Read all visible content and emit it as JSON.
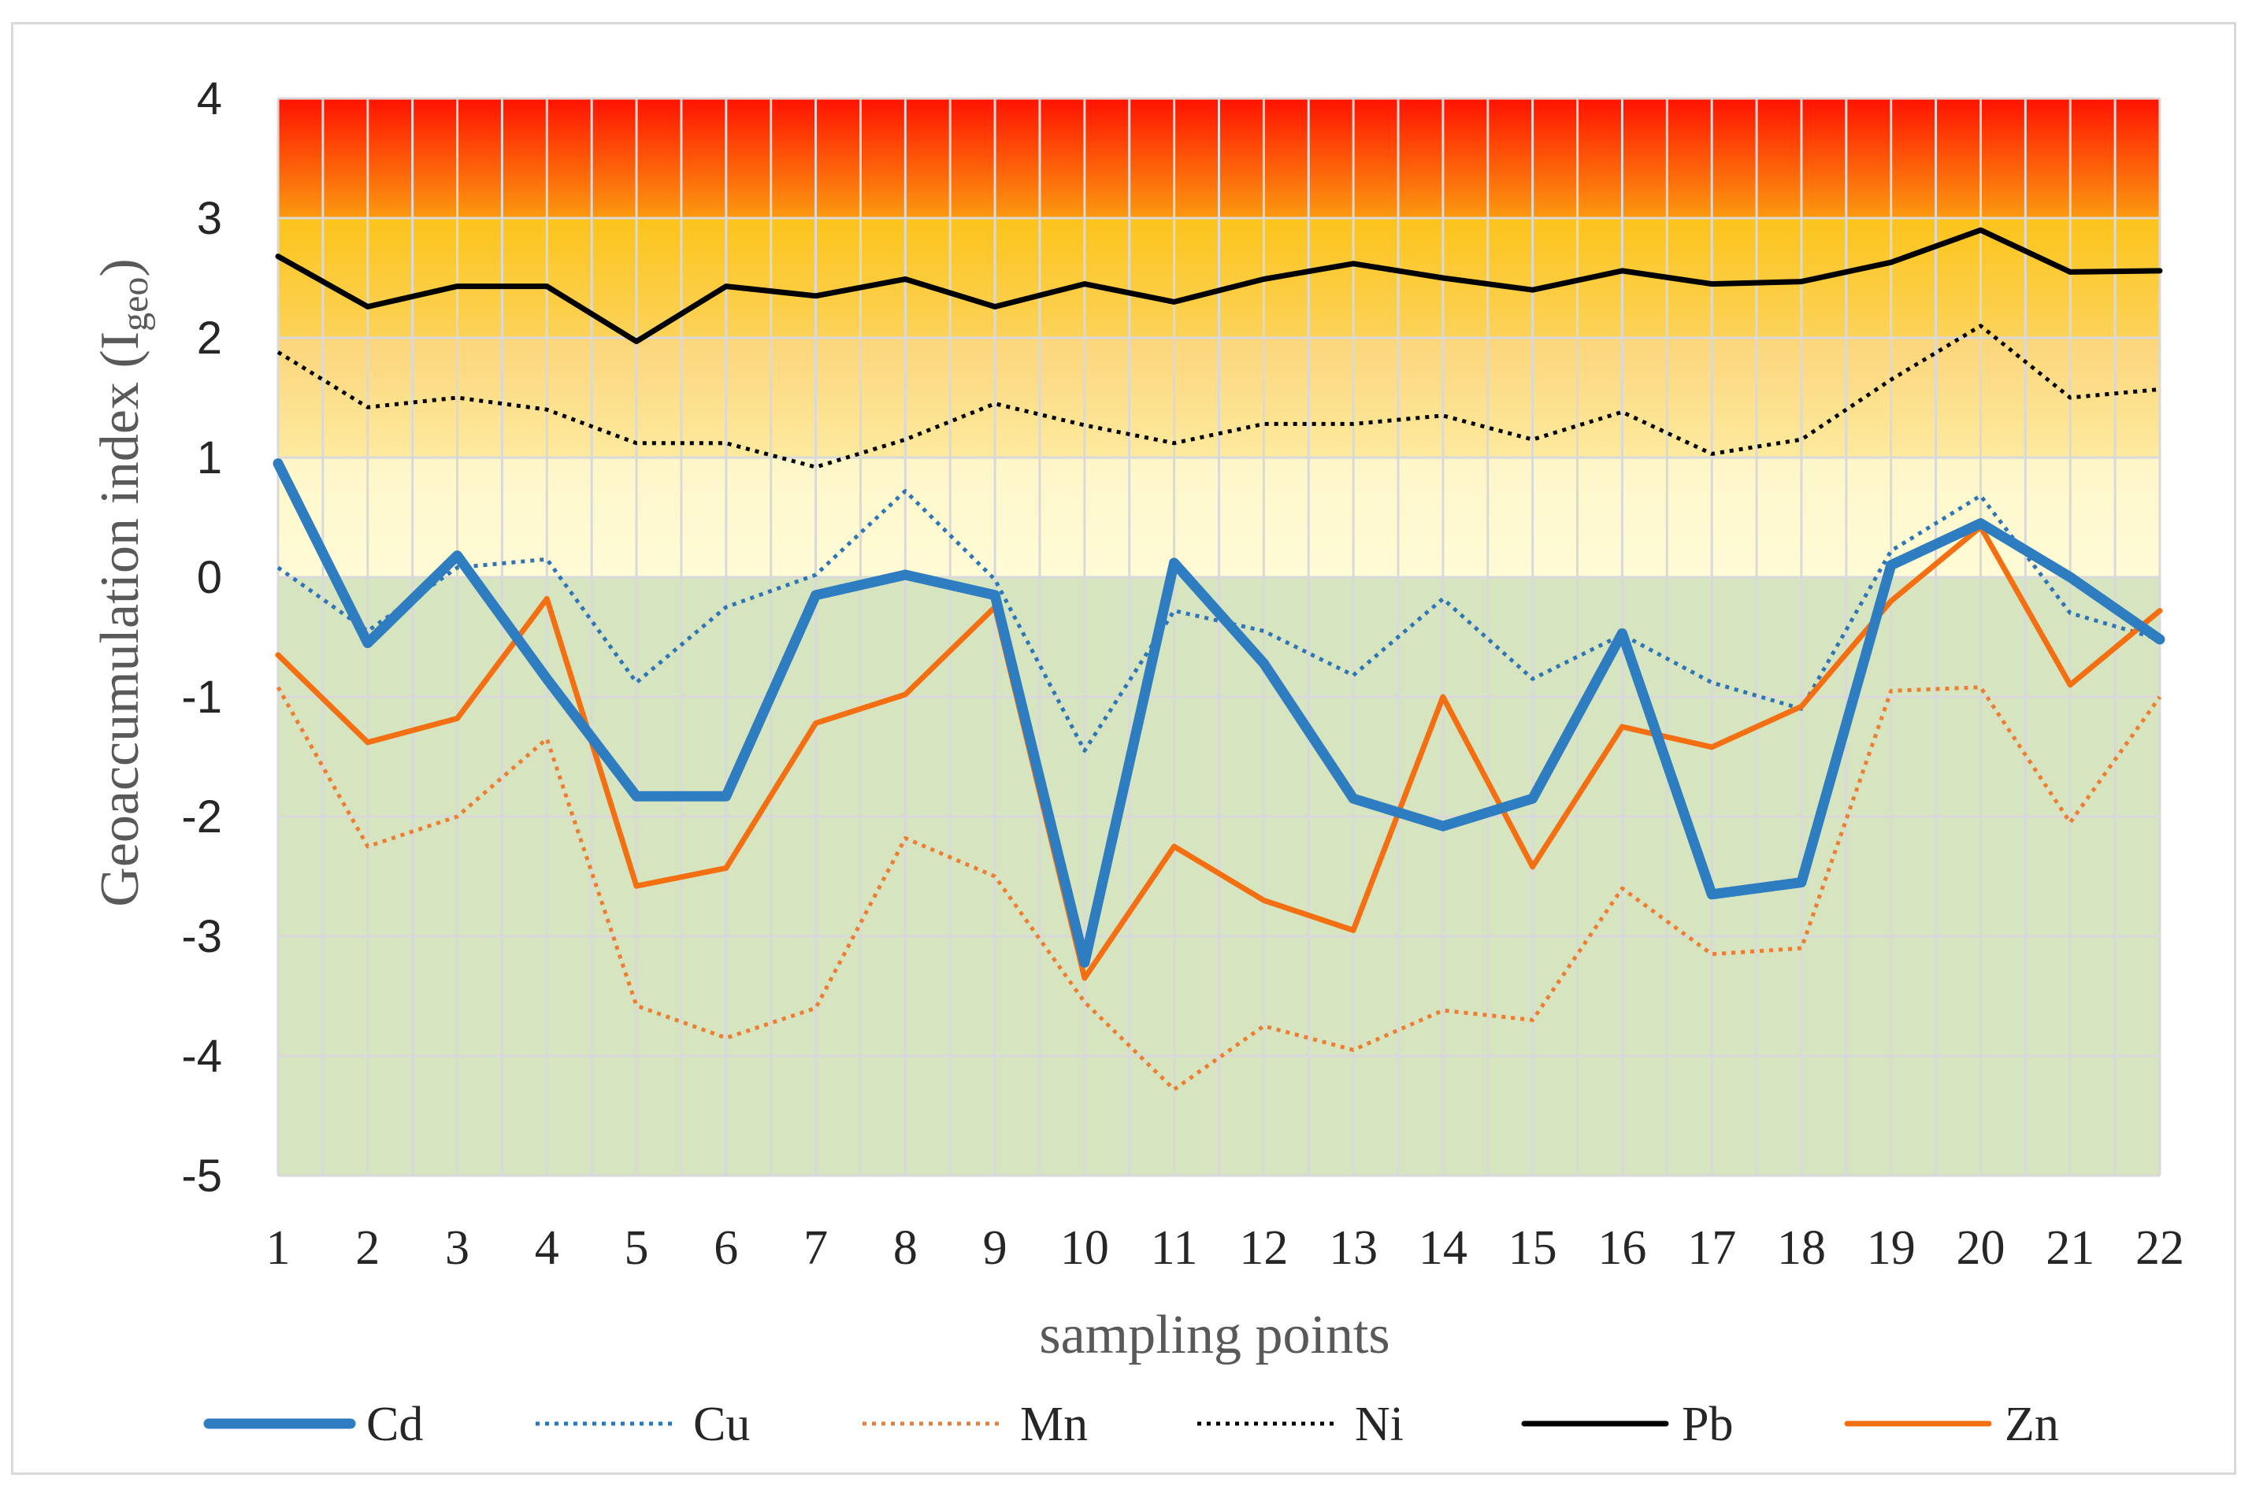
{
  "chart_data": {
    "type": "line",
    "title": "",
    "xlabel": "sampling points",
    "ylabel_main": "Geoaccumulation index (I",
    "ylabel_sub": "geo",
    "ylabel_end": ")",
    "ylim": [
      -5,
      4
    ],
    "yticks": [
      4,
      3,
      2,
      1,
      0,
      -1,
      -2,
      -3,
      -4,
      -5
    ],
    "ytick_labels": [
      "4",
      "3",
      "2",
      "1",
      "0",
      "-1",
      "-2",
      "-3",
      "-4",
      "-5"
    ],
    "categories": [
      "1",
      "2",
      "3",
      "4",
      "5",
      "6",
      "7",
      "8",
      "9",
      "10",
      "11",
      "12",
      "13",
      "14",
      "15",
      "16",
      "17",
      "18",
      "19",
      "20",
      "21",
      "22"
    ],
    "grid": true,
    "legend_position": "bottom",
    "background_bands": [
      {
        "from": -5,
        "to": 0,
        "colors": [
          "#d6e4bf",
          "#d6e4bf"
        ]
      },
      {
        "from": 0,
        "to": 1,
        "colors": [
          "#fdf6c8",
          "#fffbd6"
        ]
      },
      {
        "from": 1,
        "to": 2,
        "colors": [
          "#fbd57a",
          "#fdea9e"
        ]
      },
      {
        "from": 2,
        "to": 3,
        "colors": [
          "#fcc31a",
          "#fcd35a"
        ]
      },
      {
        "from": 3,
        "to": 4,
        "colors": [
          "#ff1200",
          "#fb9a10"
        ]
      }
    ],
    "series": [
      {
        "name": "Cd",
        "color": "#2e7dc0",
        "style": "solid",
        "weight": "thick",
        "values": [
          0.95,
          -0.55,
          0.18,
          -0.85,
          -1.83,
          -1.83,
          -0.15,
          0.02,
          -0.15,
          -3.22,
          0.12,
          -0.72,
          -1.85,
          -2.08,
          -1.85,
          -0.47,
          -2.65,
          -2.55,
          0.1,
          0.45,
          0.0,
          -0.52
        ]
      },
      {
        "name": "Cu",
        "color": "#2e75b6",
        "style": "dotted",
        "weight": "thin",
        "values": [
          0.08,
          -0.45,
          0.08,
          0.15,
          -0.88,
          -0.25,
          0.02,
          0.72,
          -0.02,
          -1.45,
          -0.28,
          -0.45,
          -0.82,
          -0.18,
          -0.85,
          -0.48,
          -0.88,
          -1.1,
          0.22,
          0.68,
          -0.3,
          -0.52
        ]
      },
      {
        "name": "Mn",
        "color": "#ed7d31",
        "style": "dotted",
        "weight": "thin",
        "values": [
          -0.92,
          -2.25,
          -2.0,
          -1.35,
          -3.58,
          -3.85,
          -3.6,
          -2.18,
          -2.5,
          -3.55,
          -4.28,
          -3.75,
          -3.95,
          -3.62,
          -3.7,
          -2.6,
          -3.15,
          -3.1,
          -0.95,
          -0.92,
          -2.05,
          -1.0
        ]
      },
      {
        "name": "Ni",
        "color": "#000000",
        "style": "dotted",
        "weight": "thin",
        "values": [
          1.88,
          1.42,
          1.5,
          1.4,
          1.12,
          1.12,
          0.92,
          1.15,
          1.45,
          1.27,
          1.12,
          1.28,
          1.28,
          1.35,
          1.15,
          1.38,
          1.03,
          1.15,
          1.65,
          2.1,
          1.5,
          1.57
        ]
      },
      {
        "name": "Pb",
        "color": "#000000",
        "style": "solid",
        "weight": "medium",
        "values": [
          2.68,
          2.26,
          2.43,
          2.43,
          1.97,
          2.43,
          2.35,
          2.49,
          2.26,
          2.45,
          2.3,
          2.49,
          2.62,
          2.5,
          2.4,
          2.56,
          2.45,
          2.47,
          2.63,
          2.9,
          2.55,
          2.56
        ]
      },
      {
        "name": "Zn",
        "color": "#f36f12",
        "style": "solid",
        "weight": "medium",
        "values": [
          -0.65,
          -1.38,
          -1.18,
          -0.18,
          -2.58,
          -2.43,
          -1.22,
          -0.98,
          -0.25,
          -3.35,
          -2.25,
          -2.7,
          -2.95,
          -1.0,
          -2.42,
          -1.25,
          -1.42,
          -1.08,
          -0.2,
          0.42,
          -0.9,
          -0.28
        ]
      }
    ]
  }
}
